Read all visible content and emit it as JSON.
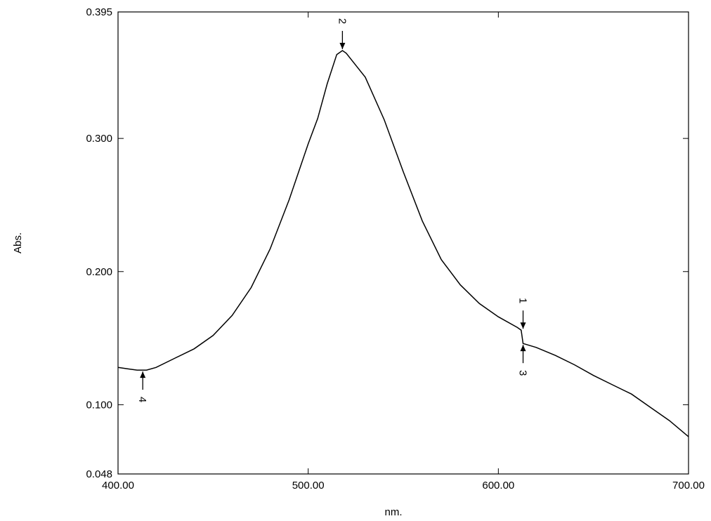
{
  "chart_data": {
    "type": "line",
    "x_label": "nm.",
    "y_label": "Abs.",
    "x": [
      400,
      405,
      410,
      415,
      420,
      430,
      440,
      450,
      460,
      470,
      480,
      490,
      500,
      505,
      510,
      515,
      518,
      520,
      530,
      540,
      550,
      560,
      570,
      580,
      590,
      600,
      610,
      612,
      613,
      620,
      630,
      640,
      650,
      660,
      670,
      680,
      690,
      700
    ],
    "series": [
      {
        "color": "#000000",
        "values": [
          0.128,
          0.127,
          0.126,
          0.126,
          0.128,
          0.135,
          0.142,
          0.152,
          0.167,
          0.188,
          0.217,
          0.254,
          0.296,
          0.315,
          0.341,
          0.363,
          0.366,
          0.364,
          0.346,
          0.314,
          0.275,
          0.238,
          0.209,
          0.19,
          0.176,
          0.166,
          0.158,
          0.156,
          0.146,
          0.143,
          0.137,
          0.13,
          0.122,
          0.115,
          0.108,
          0.098,
          0.088,
          0.076
        ]
      }
    ],
    "xlim": [
      400,
      700
    ],
    "xticks": [
      {
        "value": 400,
        "label": "400.00"
      },
      {
        "value": 500,
        "label": "500.00"
      },
      {
        "value": 600,
        "label": "600.00"
      },
      {
        "value": 700,
        "label": "700.00"
      }
    ],
    "ylim": [
      0.048,
      0.395
    ],
    "yticks": [
      0.048,
      {
        "value": 0.1,
        "label": "0.100"
      },
      {
        "value": 0.2,
        "label": "0.200"
      },
      {
        "value": 0.3,
        "label": "0.300"
      },
      0.395
    ],
    "annotations": [
      {
        "text": "1",
        "x": 613,
        "y": 0.156,
        "side": "above"
      },
      {
        "text": "2",
        "x": 518,
        "y": 0.366,
        "side": "above"
      },
      {
        "text": "3",
        "x": 613,
        "y": 0.146,
        "side": "below"
      },
      {
        "text": "4",
        "x": 413,
        "y": 0.126,
        "side": "below"
      }
    ]
  }
}
